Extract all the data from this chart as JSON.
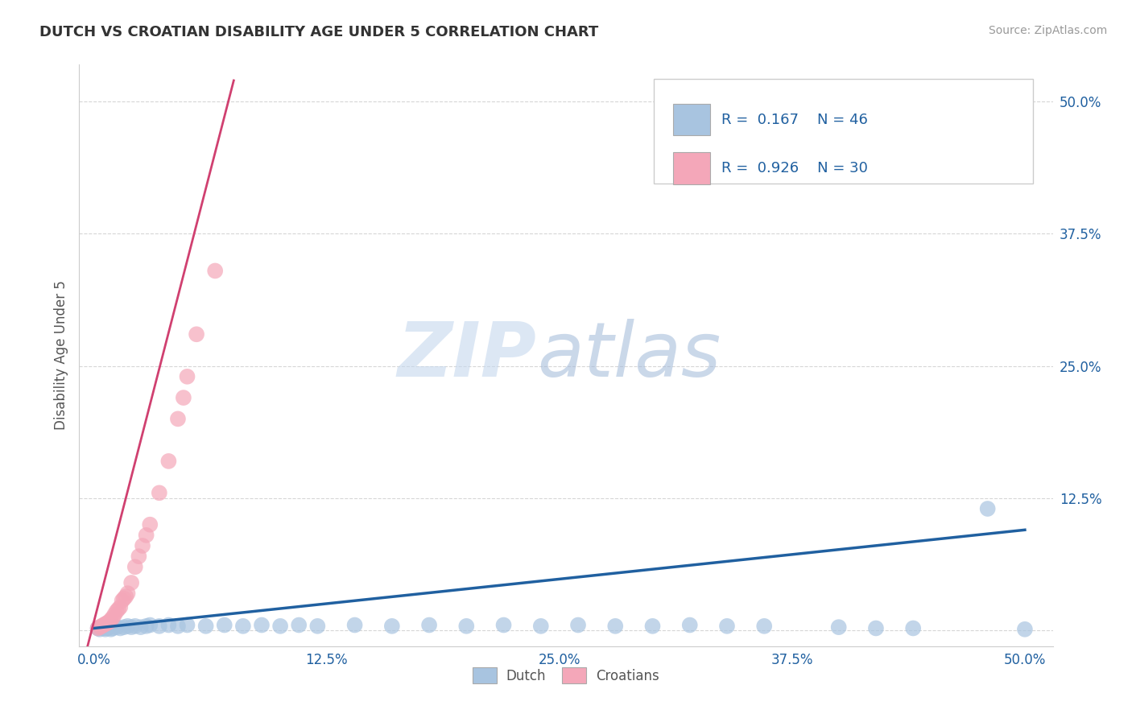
{
  "title": "DUTCH VS CROATIAN DISABILITY AGE UNDER 5 CORRELATION CHART",
  "source": "Source: ZipAtlas.com",
  "ylabel": "Disability Age Under 5",
  "x_ticks": [
    0.0,
    0.125,
    0.25,
    0.375,
    0.5
  ],
  "x_tick_labels": [
    "0.0%",
    "12.5%",
    "25.0%",
    "37.5%",
    "50.0%"
  ],
  "y_ticks": [
    0.0,
    0.125,
    0.25,
    0.375,
    0.5
  ],
  "y_tick_labels": [
    "",
    "12.5%",
    "25.0%",
    "37.5%",
    "50.0%"
  ],
  "xlim": [
    -0.008,
    0.515
  ],
  "ylim": [
    -0.015,
    0.535
  ],
  "dutch_color": "#a8c4e0",
  "croatian_color": "#f4a7b9",
  "dutch_line_color": "#2060a0",
  "croatian_line_color": "#d04070",
  "background_color": "#ffffff",
  "grid_color": "#cccccc",
  "watermark_zip": "ZIP",
  "watermark_atlas": "atlas",
  "dutch_scatter": [
    [
      0.002,
      0.002
    ],
    [
      0.003,
      0.001
    ],
    [
      0.004,
      0.003
    ],
    [
      0.005,
      0.002
    ],
    [
      0.006,
      0.001
    ],
    [
      0.007,
      0.002
    ],
    [
      0.008,
      0.003
    ],
    [
      0.009,
      0.001
    ],
    [
      0.01,
      0.002
    ],
    [
      0.012,
      0.003
    ],
    [
      0.014,
      0.002
    ],
    [
      0.016,
      0.003
    ],
    [
      0.018,
      0.004
    ],
    [
      0.02,
      0.003
    ],
    [
      0.022,
      0.004
    ],
    [
      0.025,
      0.003
    ],
    [
      0.028,
      0.004
    ],
    [
      0.03,
      0.005
    ],
    [
      0.035,
      0.004
    ],
    [
      0.04,
      0.005
    ],
    [
      0.045,
      0.004
    ],
    [
      0.05,
      0.005
    ],
    [
      0.06,
      0.004
    ],
    [
      0.07,
      0.005
    ],
    [
      0.08,
      0.004
    ],
    [
      0.09,
      0.005
    ],
    [
      0.1,
      0.004
    ],
    [
      0.11,
      0.005
    ],
    [
      0.12,
      0.004
    ],
    [
      0.14,
      0.005
    ],
    [
      0.16,
      0.004
    ],
    [
      0.18,
      0.005
    ],
    [
      0.2,
      0.004
    ],
    [
      0.22,
      0.005
    ],
    [
      0.24,
      0.004
    ],
    [
      0.26,
      0.005
    ],
    [
      0.28,
      0.004
    ],
    [
      0.3,
      0.004
    ],
    [
      0.32,
      0.005
    ],
    [
      0.34,
      0.004
    ],
    [
      0.36,
      0.004
    ],
    [
      0.4,
      0.003
    ],
    [
      0.42,
      0.002
    ],
    [
      0.44,
      0.002
    ],
    [
      0.48,
      0.115
    ],
    [
      0.5,
      0.001
    ]
  ],
  "croatian_scatter": [
    [
      0.002,
      0.002
    ],
    [
      0.003,
      0.003
    ],
    [
      0.004,
      0.004
    ],
    [
      0.005,
      0.005
    ],
    [
      0.006,
      0.006
    ],
    [
      0.007,
      0.007
    ],
    [
      0.008,
      0.008
    ],
    [
      0.009,
      0.01
    ],
    [
      0.01,
      0.012
    ],
    [
      0.011,
      0.015
    ],
    [
      0.012,
      0.018
    ],
    [
      0.013,
      0.02
    ],
    [
      0.014,
      0.022
    ],
    [
      0.015,
      0.028
    ],
    [
      0.016,
      0.03
    ],
    [
      0.017,
      0.032
    ],
    [
      0.018,
      0.035
    ],
    [
      0.02,
      0.045
    ],
    [
      0.022,
      0.06
    ],
    [
      0.024,
      0.07
    ],
    [
      0.026,
      0.08
    ],
    [
      0.028,
      0.09
    ],
    [
      0.03,
      0.1
    ],
    [
      0.035,
      0.13
    ],
    [
      0.04,
      0.16
    ],
    [
      0.045,
      0.2
    ],
    [
      0.048,
      0.22
    ],
    [
      0.05,
      0.24
    ],
    [
      0.055,
      0.28
    ],
    [
      0.065,
      0.34
    ]
  ],
  "dutch_line_x": [
    0.0,
    0.5
  ],
  "dutch_line_y": [
    0.002,
    0.095
  ],
  "croatian_line_x": [
    -0.005,
    0.075
  ],
  "croatian_line_y": [
    -0.025,
    0.52
  ]
}
